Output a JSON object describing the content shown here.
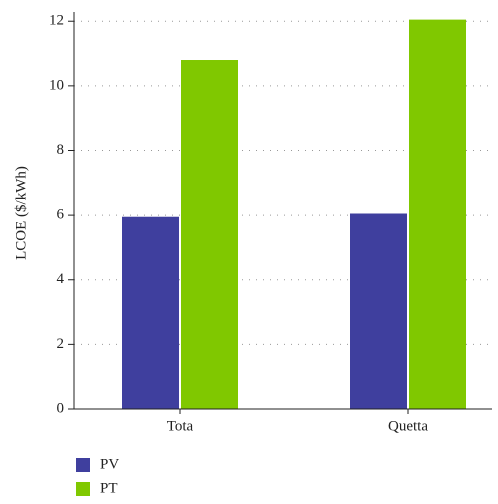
{
  "chart_data": {
    "type": "bar",
    "y_label": "LCOE ($/kWh)",
    "categories": [
      "Tota",
      "Quetta"
    ],
    "series": [
      {
        "name": "PV",
        "color": "#3f3f9e",
        "values": [
          5.95,
          6.05
        ]
      },
      {
        "name": "PT",
        "color": "#80c800",
        "values": [
          10.8,
          12.05
        ]
      }
    ],
    "ylim": [
      0,
      12.1
    ],
    "yticks": [
      0,
      2,
      4,
      6,
      8,
      10,
      12
    ],
    "grid": true
  }
}
